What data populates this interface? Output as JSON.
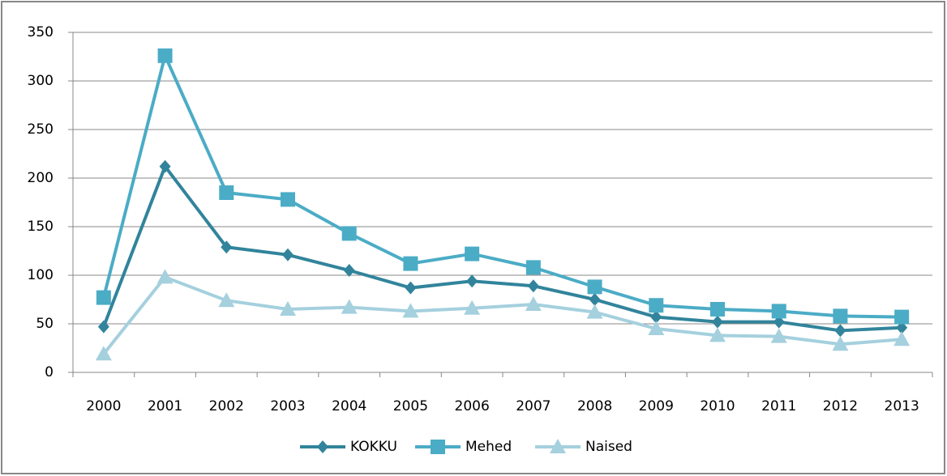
{
  "chart_data": {
    "type": "line",
    "categories": [
      "2000",
      "2001",
      "2002",
      "2003",
      "2004",
      "2005",
      "2006",
      "2007",
      "2008",
      "2009",
      "2010",
      "2011",
      "2012",
      "2013"
    ],
    "series": [
      {
        "name": "KOKKU",
        "color": "#31849b",
        "marker": "diamond",
        "values": [
          47,
          212,
          129,
          121,
          105,
          87,
          94,
          89,
          75,
          57,
          52,
          52,
          43,
          46
        ]
      },
      {
        "name": "Mehed",
        "color": "#4bacc6",
        "marker": "square",
        "values": [
          77,
          326,
          185,
          178,
          143,
          112,
          122,
          108,
          88,
          69,
          65,
          63,
          58,
          57
        ]
      },
      {
        "name": "Naised",
        "color": "#a5d0de",
        "marker": "triangle",
        "values": [
          19,
          98,
          74,
          65,
          67,
          63,
          66,
          70,
          62,
          45,
          38,
          37,
          29,
          34
        ]
      }
    ],
    "ylim": [
      0,
      350
    ],
    "yticks": [
      0,
      50,
      100,
      150,
      200,
      250,
      300,
      350
    ],
    "grid": true,
    "legend": "bottom"
  }
}
